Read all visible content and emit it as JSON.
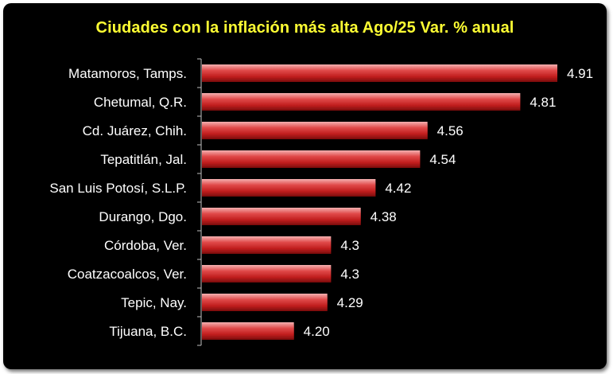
{
  "chart_data": {
    "type": "bar",
    "orientation": "horizontal",
    "title": "Ciudades con la inflación más alta Ago/25 Var. % anual",
    "categories": [
      "Matamoros, Tamps.",
      "Chetumal, Q.R.",
      "Cd. Juárez, Chih.",
      "Tepatitlán, Jal.",
      "San Luis Potosí, S.L.P.",
      "Durango, Dgo.",
      "Córdoba, Ver.",
      "Coatzacoalcos, Ver.",
      "Tepic, Nay.",
      "Tijuana, B.C."
    ],
    "values": [
      4.91,
      4.81,
      4.56,
      4.54,
      4.42,
      4.38,
      4.3,
      4.3,
      4.29,
      4.2
    ],
    "value_labels": [
      "4.91",
      "4.81",
      "4.56",
      "4.54",
      "4.42",
      "4.38",
      "4.3",
      "4.3",
      "4.29",
      "4.20"
    ],
    "xlim": [
      3.95,
      4.91
    ],
    "grid": false,
    "legend": "none",
    "colors": {
      "background": "#000000",
      "title": "#ffff33",
      "bar_top": "#f2a0a0",
      "bar_mid": "#d22a2a",
      "bar_bottom": "#8a1010",
      "text": "#ffffff",
      "axis": "#bfbfbf"
    }
  }
}
